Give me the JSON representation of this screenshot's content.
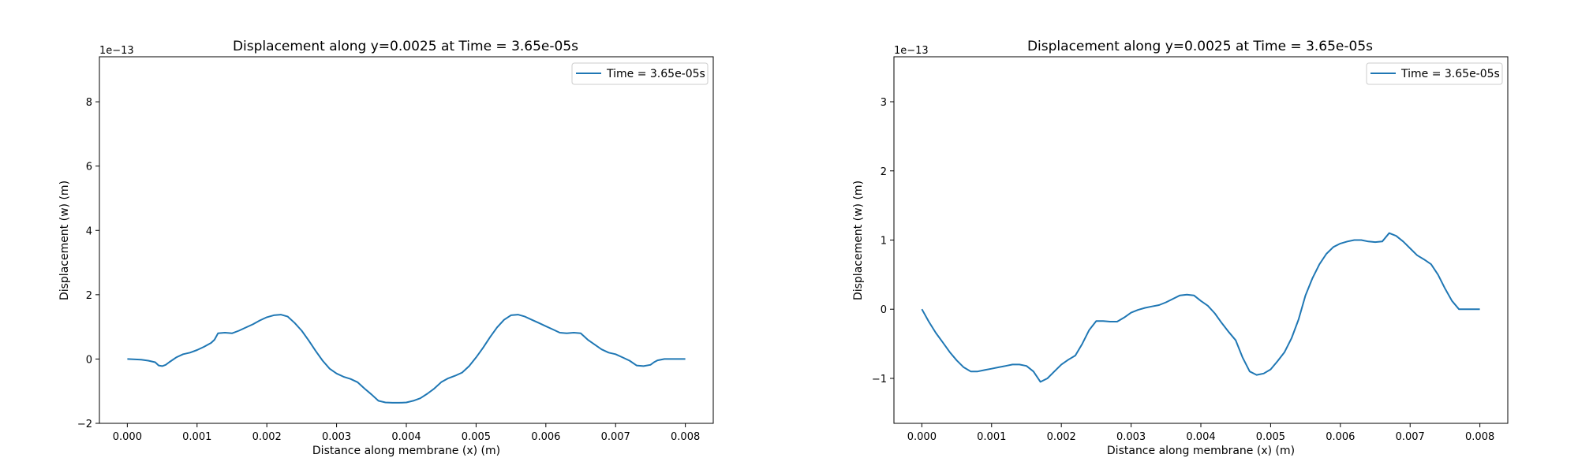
{
  "chart_data": [
    {
      "type": "line",
      "title": "Displacement along y=0.0025 at Time = 3.65e-05s",
      "xlabel": "Distance along membrane (x) (m)",
      "ylabel": "Displacement (w) (m)",
      "y_offset_label": "1e−13",
      "xlim": [
        -0.0004,
        0.0084
      ],
      "ylim": [
        -2,
        9.4
      ],
      "xticks": [
        0.0,
        0.001,
        0.002,
        0.003,
        0.004,
        0.005,
        0.006,
        0.007,
        0.008
      ],
      "xtick_labels": [
        "0.000",
        "0.001",
        "0.002",
        "0.003",
        "0.004",
        "0.005",
        "0.006",
        "0.007",
        "0.008"
      ],
      "yticks": [
        -2,
        0,
        2,
        4,
        6,
        8
      ],
      "ytick_labels": [
        "−2",
        "0",
        "2",
        "4",
        "6",
        "8"
      ],
      "grid": false,
      "legend_position": "top-right",
      "series": [
        {
          "name": "Time = 3.65e-05s",
          "color": "#1f77b4",
          "x": [
            0.0,
            0.0002,
            0.0003,
            0.0004,
            0.00045,
            0.0005,
            0.00055,
            0.0006,
            0.0007,
            0.0008,
            0.0009,
            0.001,
            0.0011,
            0.0012,
            0.00125,
            0.0013,
            0.0014,
            0.0015,
            0.0016,
            0.0017,
            0.0018,
            0.0019,
            0.002,
            0.0021,
            0.0022,
            0.0023,
            0.0024,
            0.0025,
            0.0026,
            0.0027,
            0.0028,
            0.0029,
            0.003,
            0.0031,
            0.0032,
            0.0033,
            0.0034,
            0.0035,
            0.0036,
            0.0037,
            0.0038,
            0.0039,
            0.004,
            0.0041,
            0.0042,
            0.0043,
            0.0044,
            0.0045,
            0.0046,
            0.0047,
            0.0048,
            0.0049,
            0.005,
            0.0051,
            0.0052,
            0.0053,
            0.0054,
            0.0055,
            0.0056,
            0.0057,
            0.0058,
            0.0059,
            0.006,
            0.0061,
            0.0062,
            0.0063,
            0.0064,
            0.0065,
            0.0066,
            0.0067,
            0.0068,
            0.0069,
            0.007,
            0.0071,
            0.0072,
            0.0073,
            0.0074,
            0.0075,
            0.00755,
            0.0076,
            0.0077,
            0.0078,
            0.008
          ],
          "y": [
            0.0,
            -0.02,
            -0.05,
            -0.1,
            -0.2,
            -0.22,
            -0.18,
            -0.1,
            0.05,
            0.15,
            0.2,
            0.28,
            0.38,
            0.5,
            0.6,
            0.8,
            0.82,
            0.8,
            0.88,
            0.98,
            1.08,
            1.2,
            1.3,
            1.36,
            1.38,
            1.32,
            1.12,
            0.88,
            0.58,
            0.25,
            -0.05,
            -0.3,
            -0.45,
            -0.55,
            -0.62,
            -0.72,
            -0.92,
            -1.1,
            -1.3,
            -1.35,
            -1.36,
            -1.36,
            -1.35,
            -1.3,
            -1.22,
            -1.08,
            -0.92,
            -0.72,
            -0.6,
            -0.52,
            -0.42,
            -0.22,
            0.05,
            0.35,
            0.68,
            0.98,
            1.22,
            1.36,
            1.38,
            1.32,
            1.22,
            1.12,
            1.02,
            0.92,
            0.82,
            0.8,
            0.82,
            0.8,
            0.6,
            0.45,
            0.3,
            0.2,
            0.15,
            0.05,
            -0.05,
            -0.2,
            -0.22,
            -0.18,
            -0.1,
            -0.04,
            0.0,
            0.0,
            0.0
          ]
        }
      ]
    },
    {
      "type": "line",
      "title": "Displacement along y=0.0025 at Time = 3.65e-05s",
      "xlabel": "Distance along membrane (x) (m)",
      "ylabel": "Displacement (w) (m)",
      "y_offset_label": "1e−13",
      "xlim": [
        -0.0004,
        0.0084
      ],
      "ylim": [
        -1.65,
        3.65
      ],
      "xticks": [
        0.0,
        0.001,
        0.002,
        0.003,
        0.004,
        0.005,
        0.006,
        0.007,
        0.008
      ],
      "xtick_labels": [
        "0.000",
        "0.001",
        "0.002",
        "0.003",
        "0.004",
        "0.005",
        "0.006",
        "0.007",
        "0.008"
      ],
      "yticks": [
        -1,
        0,
        1,
        2,
        3
      ],
      "ytick_labels": [
        "−1",
        "0",
        "1",
        "2",
        "3"
      ],
      "grid": false,
      "legend_position": "top-right",
      "series": [
        {
          "name": "Time = 3.65e-05s",
          "color": "#1f77b4",
          "x": [
            0.0,
            0.0001,
            0.0002,
            0.0003,
            0.0004,
            0.0005,
            0.0006,
            0.0007,
            0.0008,
            0.0009,
            0.001,
            0.0011,
            0.0012,
            0.0013,
            0.0014,
            0.0015,
            0.0016,
            0.0017,
            0.0018,
            0.0019,
            0.002,
            0.0021,
            0.0022,
            0.0023,
            0.0024,
            0.0025,
            0.0026,
            0.0027,
            0.0028,
            0.0029,
            0.003,
            0.0031,
            0.0032,
            0.0033,
            0.0034,
            0.0035,
            0.0036,
            0.0037,
            0.0038,
            0.0039,
            0.004,
            0.0041,
            0.0042,
            0.0043,
            0.0044,
            0.0045,
            0.0046,
            0.0047,
            0.0048,
            0.0049,
            0.005,
            0.0051,
            0.0052,
            0.0053,
            0.0054,
            0.0055,
            0.0056,
            0.0057,
            0.0058,
            0.0059,
            0.006,
            0.0061,
            0.0062,
            0.0063,
            0.0064,
            0.0065,
            0.0066,
            0.0067,
            0.0068,
            0.0069,
            0.007,
            0.0071,
            0.0072,
            0.0073,
            0.0074,
            0.0075,
            0.0076,
            0.0077,
            0.0078,
            0.0079,
            0.008
          ],
          "y": [
            0.0,
            -0.18,
            -0.34,
            -0.48,
            -0.62,
            -0.74,
            -0.84,
            -0.9,
            -0.9,
            -0.88,
            -0.86,
            -0.84,
            -0.82,
            -0.8,
            -0.8,
            -0.82,
            -0.9,
            -1.05,
            -1.0,
            -0.9,
            -0.8,
            -0.73,
            -0.67,
            -0.5,
            -0.3,
            -0.17,
            -0.17,
            -0.18,
            -0.18,
            -0.12,
            -0.05,
            -0.01,
            0.02,
            0.04,
            0.06,
            0.1,
            0.15,
            0.2,
            0.21,
            0.2,
            0.12,
            0.05,
            -0.06,
            -0.2,
            -0.33,
            -0.45,
            -0.7,
            -0.9,
            -0.95,
            -0.93,
            -0.87,
            -0.75,
            -0.62,
            -0.42,
            -0.15,
            0.2,
            0.45,
            0.65,
            0.8,
            0.9,
            0.95,
            0.98,
            1.0,
            1.0,
            0.98,
            0.97,
            0.98,
            1.1,
            1.06,
            0.98,
            0.88,
            0.78,
            0.72,
            0.65,
            0.5,
            0.3,
            0.12,
            0.0,
            0.0,
            0.0,
            0.0
          ]
        }
      ]
    }
  ]
}
